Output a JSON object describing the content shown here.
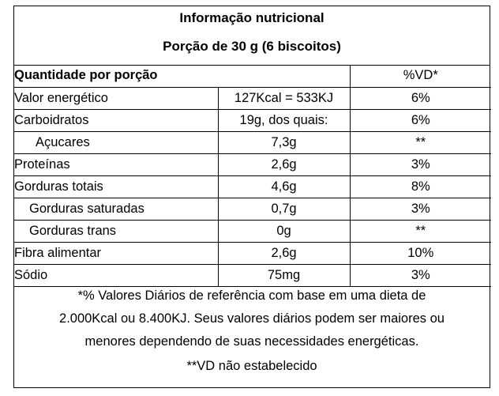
{
  "title": "Informação nutricional",
  "portion": "Porção de 30 g (6 biscoitos)",
  "table": {
    "header_left": "Quantidade por porção",
    "header_right": "%VD*",
    "rows": [
      {
        "name": "Valor energético",
        "quantity": "127Kcal = 533KJ",
        "vd": "6%"
      },
      {
        "name": "Carboidratos",
        "quantity": "19g, dos quais:",
        "vd": "6%"
      },
      {
        "name": "Açucares",
        "quantity": "7,3g",
        "vd": "**"
      },
      {
        "name": "Proteínas",
        "quantity": "2,6g",
        "vd": "3%"
      },
      {
        "name": "Gorduras totais",
        "quantity": "4,6g",
        "vd": "8%"
      },
      {
        "name": "Gorduras saturadas",
        "quantity": "0,7g",
        "vd": "3%"
      },
      {
        "name": "Gorduras trans",
        "quantity": "0g",
        "vd": "**"
      },
      {
        "name": "Fibra alimentar",
        "quantity": "2,6g",
        "vd": "10%"
      },
      {
        "name": "Sódio",
        "quantity": "75mg",
        "vd": "3%"
      }
    ]
  },
  "footnote": {
    "lines": [
      "*% Valores Diários de referência com base em uma dieta de",
      "2.000Kcal ou 8.400KJ. Seus valores diários podem ser maiores ou",
      "menores dependendo de suas necessidades energéticas."
    ],
    "vd_note": "**VD não estabelecido"
  }
}
